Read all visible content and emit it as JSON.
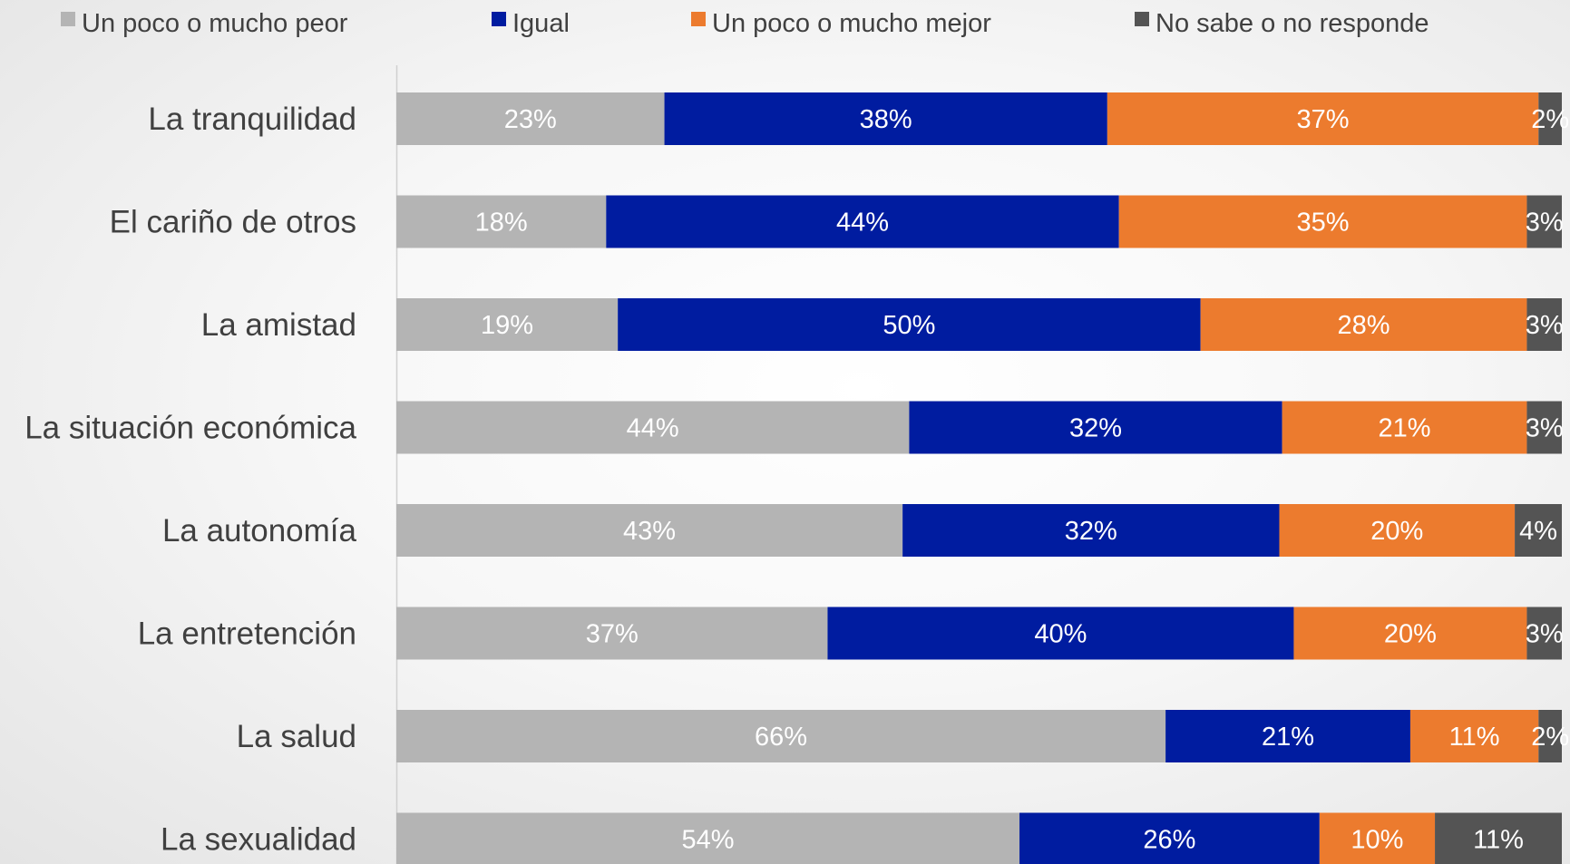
{
  "chart_data": {
    "type": "bar",
    "orientation": "horizontal",
    "stacked": true,
    "legend_position": "top",
    "grid": false,
    "categories": [
      "La tranquilidad",
      "El cariño de otros",
      "La amistad",
      "La situación económica",
      "La autonomía",
      "La entretención",
      "La salud",
      "La sexualidad"
    ],
    "series": [
      {
        "name": "Un poco o mucho peor",
        "color": "#b4b4b4",
        "values": [
          23,
          18,
          19,
          44,
          43,
          37,
          66,
          54
        ]
      },
      {
        "name": "Igual",
        "color": "#001ca0",
        "values": [
          38,
          44,
          50,
          32,
          32,
          40,
          21,
          26
        ]
      },
      {
        "name": "Un poco o mucho mejor",
        "color": "#ec7b2e",
        "values": [
          37,
          35,
          28,
          21,
          20,
          20,
          11,
          10
        ]
      },
      {
        "name": "No sabe o no responde",
        "color": "#545454",
        "values": [
          2,
          3,
          3,
          3,
          4,
          3,
          2,
          11
        ]
      }
    ],
    "value_format": "{v}%"
  }
}
